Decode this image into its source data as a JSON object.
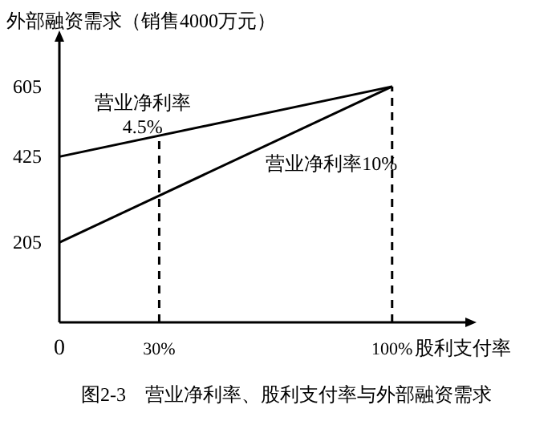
{
  "chart_data": {
    "type": "line",
    "ylabel": "外部融资需求（销售4000万元）",
    "annotations": [
      "图2-3　营业净利率、股利支付率与外部融资需求"
    ],
    "xlim": [
      0,
      122
    ],
    "ylim": [
      0,
      720
    ],
    "xticks": [
      {
        "value": 0,
        "label": "0"
      },
      {
        "value": 30,
        "label": "30%"
      },
      {
        "value": 100,
        "label": "100%"
      }
    ],
    "xlabel": "股利支付率",
    "yticks": [
      205,
      425,
      605
    ],
    "x": [
      0,
      100
    ],
    "series": [
      {
        "name": "营业净利率 4.5%",
        "color": "#000000",
        "values": [
          425,
          605
        ]
      },
      {
        "name": "营业净利率10%",
        "color": "#000000",
        "values": [
          205,
          605
        ]
      }
    ],
    "ref_lines": [
      {
        "axis": "x",
        "value": 30,
        "color": "#000000",
        "line_style": "dashed"
      },
      {
        "axis": "x",
        "value": 100,
        "color": "#000000",
        "line_style": "dashed"
      }
    ],
    "grid": false,
    "legend": false,
    "marker": "none",
    "line_style": "solid"
  }
}
